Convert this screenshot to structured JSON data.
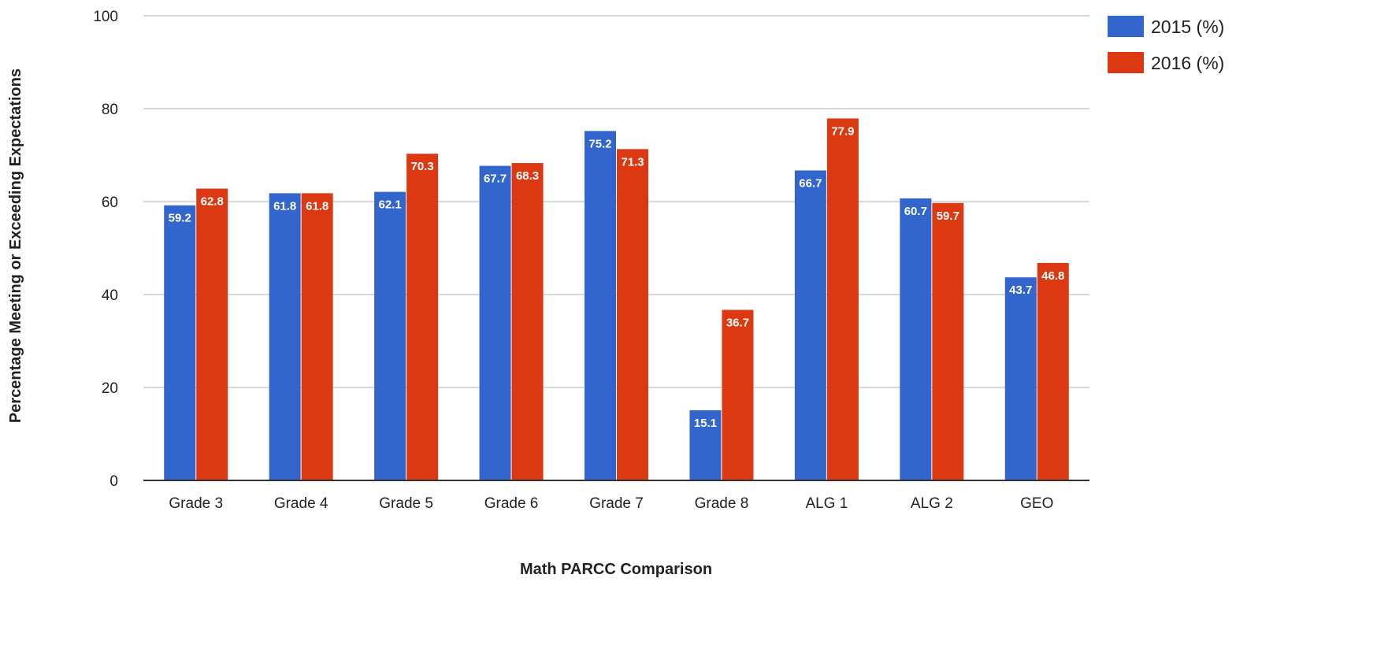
{
  "chart_data": {
    "type": "bar",
    "title": "",
    "xlabel": "Math PARCC Comparison",
    "ylabel": "Percentage Meeting or Exceeding Expectations",
    "ylim": [
      0,
      100
    ],
    "yticks": [
      "0",
      "20",
      "40",
      "60",
      "80",
      "100"
    ],
    "grid": true,
    "legend_position": "top-right",
    "categories": [
      "Grade 3",
      "Grade 4",
      "Grade 5",
      "Grade 6",
      "Grade 7",
      "Grade 8",
      "ALG 1",
      "ALG 2",
      "GEO"
    ],
    "series": [
      {
        "name": "2015 (%)",
        "color": "#3366cc",
        "values": [
          59.2,
          61.8,
          62.1,
          67.7,
          75.2,
          15.1,
          66.7,
          60.7,
          43.7
        ],
        "labels": [
          "59.2",
          "61.8",
          "62.1",
          "67.7",
          "75.2",
          "15.1",
          "66.7",
          "60.7",
          "43.7"
        ]
      },
      {
        "name": "2016 (%)",
        "color": "#dc3912",
        "values": [
          62.8,
          61.8,
          70.3,
          68.3,
          71.3,
          36.7,
          77.9,
          59.7,
          46.8
        ],
        "labels": [
          "62.8",
          "61.8",
          "70.3",
          "68.3",
          "71.3",
          "36.7",
          "77.9",
          "59.7",
          "46.8"
        ]
      }
    ]
  }
}
